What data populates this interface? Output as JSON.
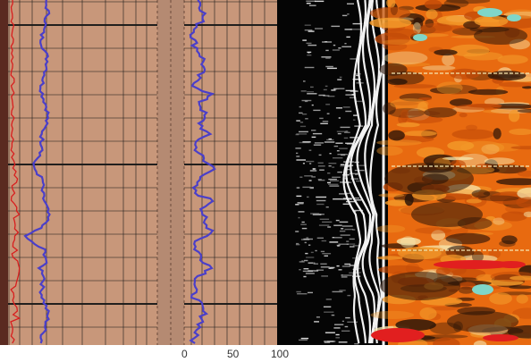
{
  "log_panel": {
    "track_color": "#c8977a",
    "depth_track_color": "#b58a72",
    "grid_color": "#1a1a1a",
    "curve_color": "#4a3fc9",
    "marker_color": "#d81e1e",
    "scale_labels": [
      "0",
      "50",
      "100"
    ]
  },
  "acoustic_panel": {
    "background": "#050505",
    "trace_color": "#f2f2f2"
  },
  "image_panel": {
    "palette": [
      "#e86a10",
      "#f39a2a",
      "#c24a08",
      "#2a1408",
      "#f6e8b0",
      "#7fd6c8",
      "#e11f1f"
    ]
  }
}
